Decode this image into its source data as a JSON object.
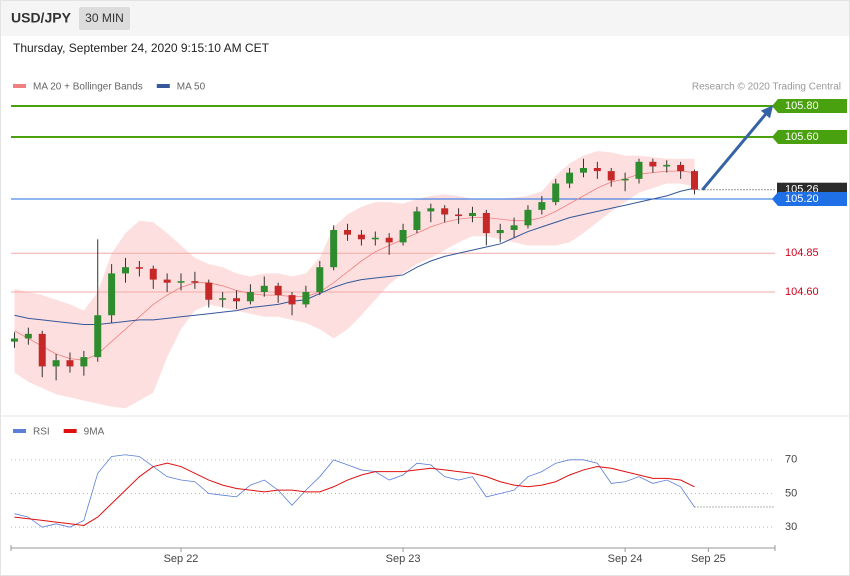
{
  "header": {
    "symbol": "USD/JPY",
    "timeframe": "30 MIN",
    "timestamp": "Thursday, September 24, 2020 9:15:10 AM CET"
  },
  "chart_data": [
    {
      "type": "candlestick",
      "source": "Research © 2020 Trading Central",
      "up_color": "#2e8b2e",
      "down_color": "#c62828",
      "xlim": [
        -0.25,
        54.8
      ],
      "ylim": [
        103.8,
        105.9
      ],
      "candles": [
        [
          104.28,
          104.34,
          104.24,
          104.3
        ],
        [
          104.3,
          104.37,
          104.26,
          104.33
        ],
        [
          104.33,
          104.35,
          104.05,
          104.12
        ],
        [
          104.12,
          104.2,
          104.03,
          104.16
        ],
        [
          104.16,
          104.21,
          104.08,
          104.12
        ],
        [
          104.12,
          104.22,
          104.06,
          104.18
        ],
        [
          104.18,
          104.94,
          104.15,
          104.45
        ],
        [
          104.45,
          104.78,
          104.4,
          104.72
        ],
        [
          104.72,
          104.82,
          104.66,
          104.76
        ],
        [
          104.76,
          104.8,
          104.7,
          104.75
        ],
        [
          104.75,
          104.77,
          104.62,
          104.68
        ],
        [
          104.68,
          104.72,
          104.6,
          104.66
        ],
        [
          104.66,
          104.72,
          104.61,
          104.67
        ],
        [
          104.67,
          104.73,
          104.62,
          104.66
        ],
        [
          104.66,
          104.68,
          104.5,
          104.55
        ],
        [
          104.55,
          104.6,
          104.5,
          104.56
        ],
        [
          104.56,
          104.61,
          104.49,
          104.54
        ],
        [
          104.54,
          104.65,
          104.52,
          104.6
        ],
        [
          104.6,
          104.7,
          104.57,
          104.64
        ],
        [
          104.64,
          104.66,
          104.53,
          104.58
        ],
        [
          104.58,
          104.6,
          104.45,
          104.52
        ],
        [
          104.52,
          104.64,
          104.5,
          104.6
        ],
        [
          104.6,
          104.8,
          104.58,
          104.76
        ],
        [
          104.76,
          105.03,
          104.74,
          105.0
        ],
        [
          105.0,
          105.04,
          104.93,
          104.97
        ],
        [
          104.97,
          105.0,
          104.9,
          104.94
        ],
        [
          104.94,
          104.99,
          104.9,
          104.95
        ],
        [
          104.95,
          104.98,
          104.84,
          104.92
        ],
        [
          104.92,
          105.04,
          104.9,
          105.0
        ],
        [
          105.0,
          105.15,
          104.98,
          105.12
        ],
        [
          105.12,
          105.17,
          105.05,
          105.14
        ],
        [
          105.14,
          105.16,
          105.05,
          105.1
        ],
        [
          105.1,
          105.14,
          105.04,
          105.09
        ],
        [
          105.09,
          105.15,
          105.05,
          105.11
        ],
        [
          105.11,
          105.13,
          104.9,
          104.98
        ],
        [
          104.98,
          105.04,
          104.92,
          105.0
        ],
        [
          105.0,
          105.08,
          104.95,
          105.03
        ],
        [
          105.03,
          105.16,
          105.01,
          105.13
        ],
        [
          105.13,
          105.22,
          105.1,
          105.18
        ],
        [
          105.18,
          105.33,
          105.16,
          105.3
        ],
        [
          105.3,
          105.4,
          105.27,
          105.37
        ],
        [
          105.37,
          105.46,
          105.34,
          105.4
        ],
        [
          105.4,
          105.44,
          105.33,
          105.38
        ],
        [
          105.38,
          105.4,
          105.28,
          105.32
        ],
        [
          105.32,
          105.37,
          105.25,
          105.33
        ],
        [
          105.33,
          105.46,
          105.3,
          105.44
        ],
        [
          105.44,
          105.46,
          105.37,
          105.41
        ],
        [
          105.41,
          105.45,
          105.37,
          105.42
        ],
        [
          105.42,
          105.44,
          105.33,
          105.38
        ],
        [
          105.38,
          105.39,
          105.23,
          105.26
        ]
      ],
      "series": [
        {
          "name": "MA 20 + Bollinger Bands",
          "color": "#f08080",
          "band_color": "#fdd9d9",
          "values": [
            104.35,
            104.3,
            104.25,
            104.2,
            104.17,
            104.16,
            104.2,
            104.28,
            104.36,
            104.44,
            104.52,
            104.58,
            104.63,
            104.66,
            104.66,
            104.64,
            104.61,
            104.59,
            104.58,
            104.58,
            104.57,
            104.57,
            104.6,
            104.66,
            104.73,
            104.8,
            104.86,
            104.9,
            104.94,
            104.98,
            105.02,
            105.05,
            105.07,
            105.08,
            105.08,
            105.07,
            105.06,
            105.06,
            105.08,
            105.12,
            105.17,
            105.22,
            105.27,
            105.31,
            105.33,
            105.36,
            105.37,
            105.38,
            105.38,
            105.37
          ],
          "upper": [
            104.62,
            104.6,
            104.58,
            104.55,
            104.52,
            104.48,
            104.6,
            104.85,
            104.98,
            105.06,
            105.05,
            104.98,
            104.9,
            104.82,
            104.78,
            104.76,
            104.72,
            104.7,
            104.72,
            104.72,
            104.7,
            104.72,
            104.82,
            105.02,
            105.1,
            105.15,
            105.18,
            105.18,
            105.17,
            105.2,
            105.22,
            105.23,
            105.22,
            105.2,
            105.2,
            105.2,
            105.21,
            105.22,
            105.25,
            105.35,
            105.43,
            105.48,
            105.51,
            105.5,
            105.48,
            105.48,
            105.47,
            105.46,
            105.46,
            105.46
          ],
          "lower": [
            104.08,
            104.02,
            103.98,
            103.94,
            103.92,
            103.9,
            103.88,
            103.86,
            103.85,
            103.9,
            103.95,
            104.18,
            104.36,
            104.48,
            104.52,
            104.5,
            104.48,
            104.46,
            104.44,
            104.44,
            104.42,
            104.4,
            104.36,
            104.3,
            104.36,
            104.45,
            104.55,
            104.65,
            104.72,
            104.78,
            104.82,
            104.87,
            104.92,
            104.96,
            104.96,
            104.94,
            104.92,
            104.9,
            104.9,
            104.9,
            104.92,
            104.98,
            105.05,
            105.12,
            105.18,
            105.24,
            105.27,
            105.3,
            105.3,
            105.28
          ]
        },
        {
          "name": "MA 50",
          "color": "#34589a",
          "values": [
            104.45,
            104.43,
            104.42,
            104.41,
            104.4,
            104.39,
            104.39,
            104.4,
            104.41,
            104.42,
            104.42,
            104.43,
            104.44,
            104.45,
            104.46,
            104.47,
            104.48,
            104.5,
            104.51,
            104.52,
            104.54,
            104.55,
            104.59,
            104.63,
            104.66,
            104.68,
            104.69,
            104.7,
            104.71,
            104.76,
            104.8,
            104.83,
            104.85,
            104.87,
            104.89,
            104.91,
            104.95,
            104.99,
            105.02,
            105.05,
            105.08,
            105.1,
            105.12,
            105.14,
            105.16,
            105.18,
            105.2,
            105.22,
            105.25,
            105.27
          ]
        }
      ],
      "levels": [
        {
          "value": 105.8,
          "label": "105.80",
          "color": "#4aa10f",
          "label_color": "#ffffff",
          "filled": true
        },
        {
          "value": 105.6,
          "label": "105.60",
          "color": "#4aa10f",
          "label_color": "#ffffff",
          "filled": true
        },
        {
          "value": 105.2,
          "label": "105.20",
          "color": "#1f6fe6",
          "label_color": "#ffffff",
          "filled": true
        },
        {
          "value": 104.85,
          "label": "104.85",
          "color": "#f5a9a9",
          "label_color": "#d0021b",
          "filled": false
        },
        {
          "value": 104.6,
          "label": "104.60",
          "color": "#f5a9a9",
          "label_color": "#d0021b",
          "filled": false
        }
      ],
      "last_price": {
        "value": 105.26,
        "label": "105.26",
        "color": "#2b2b2b"
      },
      "arrow_color": "#3563a6"
    },
    {
      "type": "line",
      "xlim": [
        -0.25,
        54.8
      ],
      "ylim": [
        20,
        80
      ],
      "yticks": [
        30,
        50,
        70
      ],
      "xticks": [
        {
          "value": 12,
          "label": "Sep 22"
        },
        {
          "value": 28,
          "label": "Sep 23"
        },
        {
          "value": 44,
          "label": "Sep 24"
        },
        {
          "value": 50,
          "label": "Sep 25"
        }
      ],
      "series": [
        {
          "name": "RSI",
          "color": "#5b7fd6",
          "values": [
            38,
            36,
            30,
            32,
            30,
            34,
            62,
            72,
            73,
            72,
            66,
            60,
            58,
            57,
            50,
            49,
            48,
            55,
            58,
            52,
            43,
            52,
            60,
            70,
            67,
            64,
            63,
            58,
            61,
            68,
            67,
            60,
            58,
            60,
            48,
            50,
            52,
            60,
            63,
            68,
            70,
            70,
            68,
            56,
            57,
            60,
            56,
            58,
            54,
            42
          ]
        },
        {
          "name": "9MA",
          "color": "#e01010",
          "values": [
            36,
            35,
            34,
            33,
            32,
            31,
            36,
            44,
            52,
            60,
            66,
            68,
            66,
            62,
            58,
            55,
            53,
            52,
            51,
            52,
            52,
            51,
            51,
            54,
            58,
            61,
            63,
            63,
            63,
            64,
            65,
            64,
            63,
            62,
            60,
            57,
            55,
            54,
            55,
            57,
            61,
            64,
            66,
            65,
            63,
            61,
            59,
            59,
            58,
            54
          ]
        }
      ]
    }
  ]
}
